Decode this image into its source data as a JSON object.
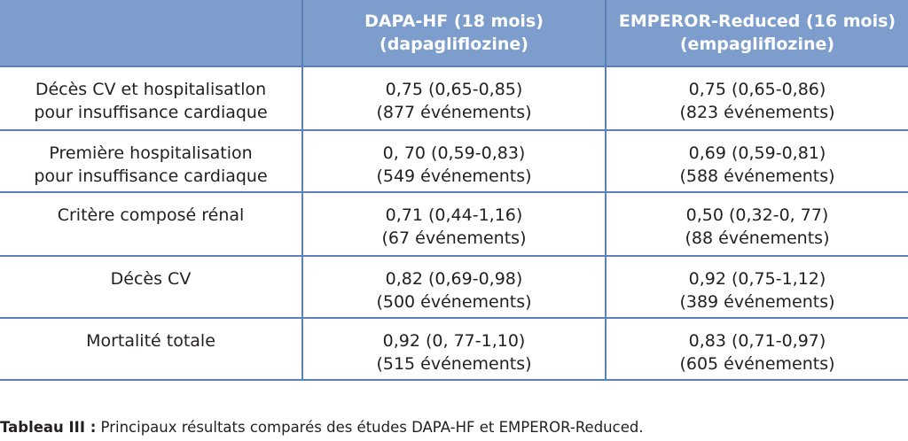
{
  "table": {
    "headers": [
      {
        "line1": "",
        "line2": ""
      },
      {
        "line1": "DAPA-HF (18 mois)",
        "line2": "(dapagliflozine)"
      },
      {
        "line1": "EMPEROR-Reduced (16 mois)",
        "line2": "(empagliflozine)"
      }
    ],
    "rows": [
      {
        "label": {
          "line1": "Décès CV et hospitalisatlon",
          "line2": "pour insuffisance cardiaque"
        },
        "dapa": {
          "line1": "0,75 (0,65-0,85)",
          "line2": "(877 événements)"
        },
        "emperor": {
          "line1": "0,75 (0,65-0,86)",
          "line2": "(823 événements)"
        }
      },
      {
        "label": {
          "line1": "Première hospitalisation",
          "line2": "pour insuffisance cardiaque"
        },
        "dapa": {
          "line1": "0, 70 (0,59-0,83)",
          "line2": "(549 événements)"
        },
        "emperor": {
          "line1": "0,69 (0,59-0,81)",
          "line2": "(588 événements)"
        }
      },
      {
        "label": {
          "line1": "Critère composé rénal",
          "line2": ""
        },
        "dapa": {
          "line1": "0,71 (0,44-1,16)",
          "line2": "(67 événements)"
        },
        "emperor": {
          "line1": "0,50 (0,32-0, 77)",
          "line2": "(88 événements)"
        }
      },
      {
        "label": {
          "line1": "Décès CV",
          "line2": ""
        },
        "dapa": {
          "line1": "0,82 (0,69-0,98)",
          "line2": "(500 événements)"
        },
        "emperor": {
          "line1": "0,92 (0,75-1,12)",
          "line2": "(389 événements)"
        }
      },
      {
        "label": {
          "line1": "Mortalité totale",
          "line2": ""
        },
        "dapa": {
          "line1": "0,92 (0, 77-1,10)",
          "line2": "(515 événements)"
        },
        "emperor": {
          "line1": "0,83 (0,71-0,97)",
          "line2": "(605 événements)"
        }
      }
    ]
  },
  "caption": {
    "label": "Tableau III :",
    "text": " Principaux résultats comparés des études DAPA-HF et EMPEROR-Reduced."
  },
  "colors": {
    "header_bg": "#7d9dcc",
    "border": "#5b7fb6",
    "header_text": "#ffffff",
    "body_text": "#231f20"
  }
}
